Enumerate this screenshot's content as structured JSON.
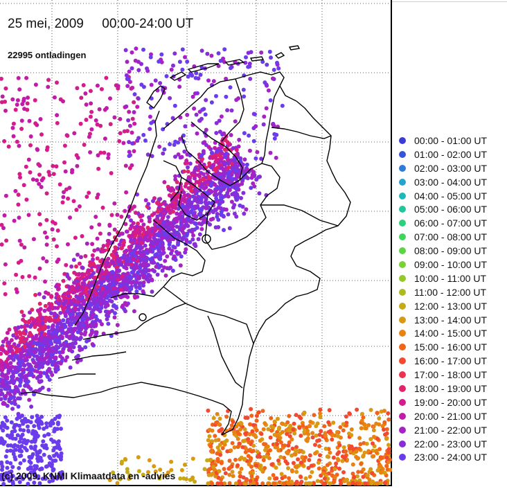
{
  "map": {
    "title": "25 mei, 2009     00:00-24:00 UT",
    "discharge_count": "22995 ontladingen",
    "credit": "(c) 2009. KNMI Klimaatdata en -advies"
  },
  "legend": {
    "items": [
      {
        "label": "00:00 - 01:00 UT",
        "color": "#3b3bd6"
      },
      {
        "label": "01:00 - 02:00 UT",
        "color": "#3554d8"
      },
      {
        "label": "02:00 - 03:00 UT",
        "color": "#2f7bd8"
      },
      {
        "label": "03:00 - 04:00 UT",
        "color": "#22a3d0"
      },
      {
        "label": "04:00 - 05:00 UT",
        "color": "#1db9b8"
      },
      {
        "label": "05:00 - 06:00 UT",
        "color": "#1fc79a"
      },
      {
        "label": "06:00 - 07:00 UT",
        "color": "#27d27a"
      },
      {
        "label": "07:00 - 08:00 UT",
        "color": "#3dd65a"
      },
      {
        "label": "08:00 - 09:00 UT",
        "color": "#5ad641"
      },
      {
        "label": "09:00 - 10:00 UT",
        "color": "#78d232"
      },
      {
        "label": "10:00 - 11:00 UT",
        "color": "#94c826"
      },
      {
        "label": "11:00 - 12:00 UT",
        "color": "#aeba1c"
      },
      {
        "label": "12:00 - 13:00 UT",
        "color": "#c4ab16"
      },
      {
        "label": "13:00 - 14:00 UT",
        "color": "#d89a12"
      },
      {
        "label": "14:00 - 15:00 UT",
        "color": "#e88210"
      },
      {
        "label": "15:00 - 16:00 UT",
        "color": "#f2641a"
      },
      {
        "label": "16:00 - 17:00 UT",
        "color": "#f24a30"
      },
      {
        "label": "17:00 - 18:00 UT",
        "color": "#ea3450"
      },
      {
        "label": "18:00 - 19:00 UT",
        "color": "#e0246c"
      },
      {
        "label": "19:00 - 20:00 UT",
        "color": "#d41c8a"
      },
      {
        "label": "20:00 - 21:00 UT",
        "color": "#c11ca8"
      },
      {
        "label": "21:00 - 22:00 UT",
        "color": "#a622c4"
      },
      {
        "label": "22:00 - 23:00 UT",
        "color": "#872ed8"
      },
      {
        "label": "23:00 - 24:00 UT",
        "color": "#6a3cec"
      }
    ]
  }
}
